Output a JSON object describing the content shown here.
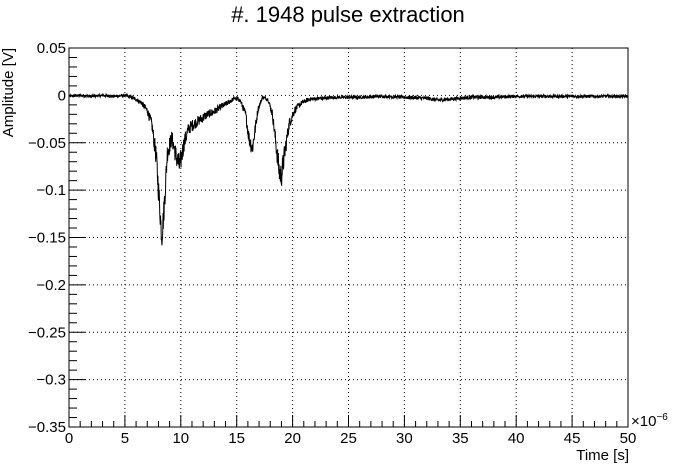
{
  "chart_data": {
    "type": "line",
    "title": "#. 1948 pulse extraction",
    "xlabel": "Time [s]",
    "ylabel": "Amplitude [V]",
    "x_multiplier_label": "×10",
    "x_multiplier_exponent": "−6",
    "xlim": [
      0,
      50
    ],
    "ylim": [
      -0.35,
      0.05
    ],
    "x_major_ticks": [
      0,
      5,
      10,
      15,
      20,
      25,
      30,
      35,
      40,
      45,
      50
    ],
    "x_tick_labels": [
      "0",
      "5",
      "10",
      "15",
      "20",
      "25",
      "30",
      "35",
      "40",
      "45",
      "50"
    ],
    "y_major_ticks": [
      0.05,
      0,
      -0.05,
      -0.1,
      -0.15,
      -0.2,
      -0.25,
      -0.3,
      -0.35
    ],
    "y_tick_labels": [
      "0.05",
      "0",
      "−0.05",
      "−0.1",
      "−0.15",
      "−0.2",
      "−0.25",
      "−0.3",
      "−0.35"
    ],
    "grid": true,
    "grid_style": "dotted",
    "line_color": "#000000",
    "series": [
      {
        "x": [
          0,
          1,
          2,
          3,
          4,
          5,
          6,
          6.5,
          7,
          7.4,
          7.8,
          8.1,
          8.3,
          8.5,
          8.8,
          9.2,
          9.6,
          9.9,
          10.3,
          10.7,
          11.2,
          11.8,
          12.4,
          13.0,
          13.6,
          14.2,
          14.8,
          15.3,
          15.8,
          16.1,
          16.4,
          16.6,
          16.9,
          17.3,
          17.8,
          18.2,
          18.5,
          18.8,
          19.0,
          19.3,
          19.7,
          20.2,
          20.8,
          21.5,
          22.5,
          24,
          26,
          28,
          30,
          32,
          33,
          34,
          35,
          36,
          38,
          40,
          42,
          44,
          46,
          48,
          50
        ],
        "y": [
          -0.001,
          0.0,
          -0.001,
          0.0,
          -0.001,
          0.0,
          -0.004,
          -0.008,
          -0.016,
          -0.03,
          -0.065,
          -0.115,
          -0.15,
          -0.12,
          -0.06,
          -0.045,
          -0.065,
          -0.075,
          -0.05,
          -0.035,
          -0.03,
          -0.025,
          -0.02,
          -0.017,
          -0.012,
          -0.008,
          -0.003,
          -0.005,
          -0.02,
          -0.045,
          -0.056,
          -0.04,
          -0.015,
          -0.002,
          -0.004,
          -0.02,
          -0.05,
          -0.08,
          -0.085,
          -0.06,
          -0.03,
          -0.015,
          -0.008,
          -0.004,
          -0.003,
          -0.002,
          -0.002,
          -0.001,
          -0.002,
          -0.003,
          -0.005,
          -0.004,
          -0.003,
          -0.002,
          -0.002,
          -0.001,
          -0.001,
          -0.001,
          -0.001,
          -0.001,
          -0.001
        ]
      }
    ]
  }
}
